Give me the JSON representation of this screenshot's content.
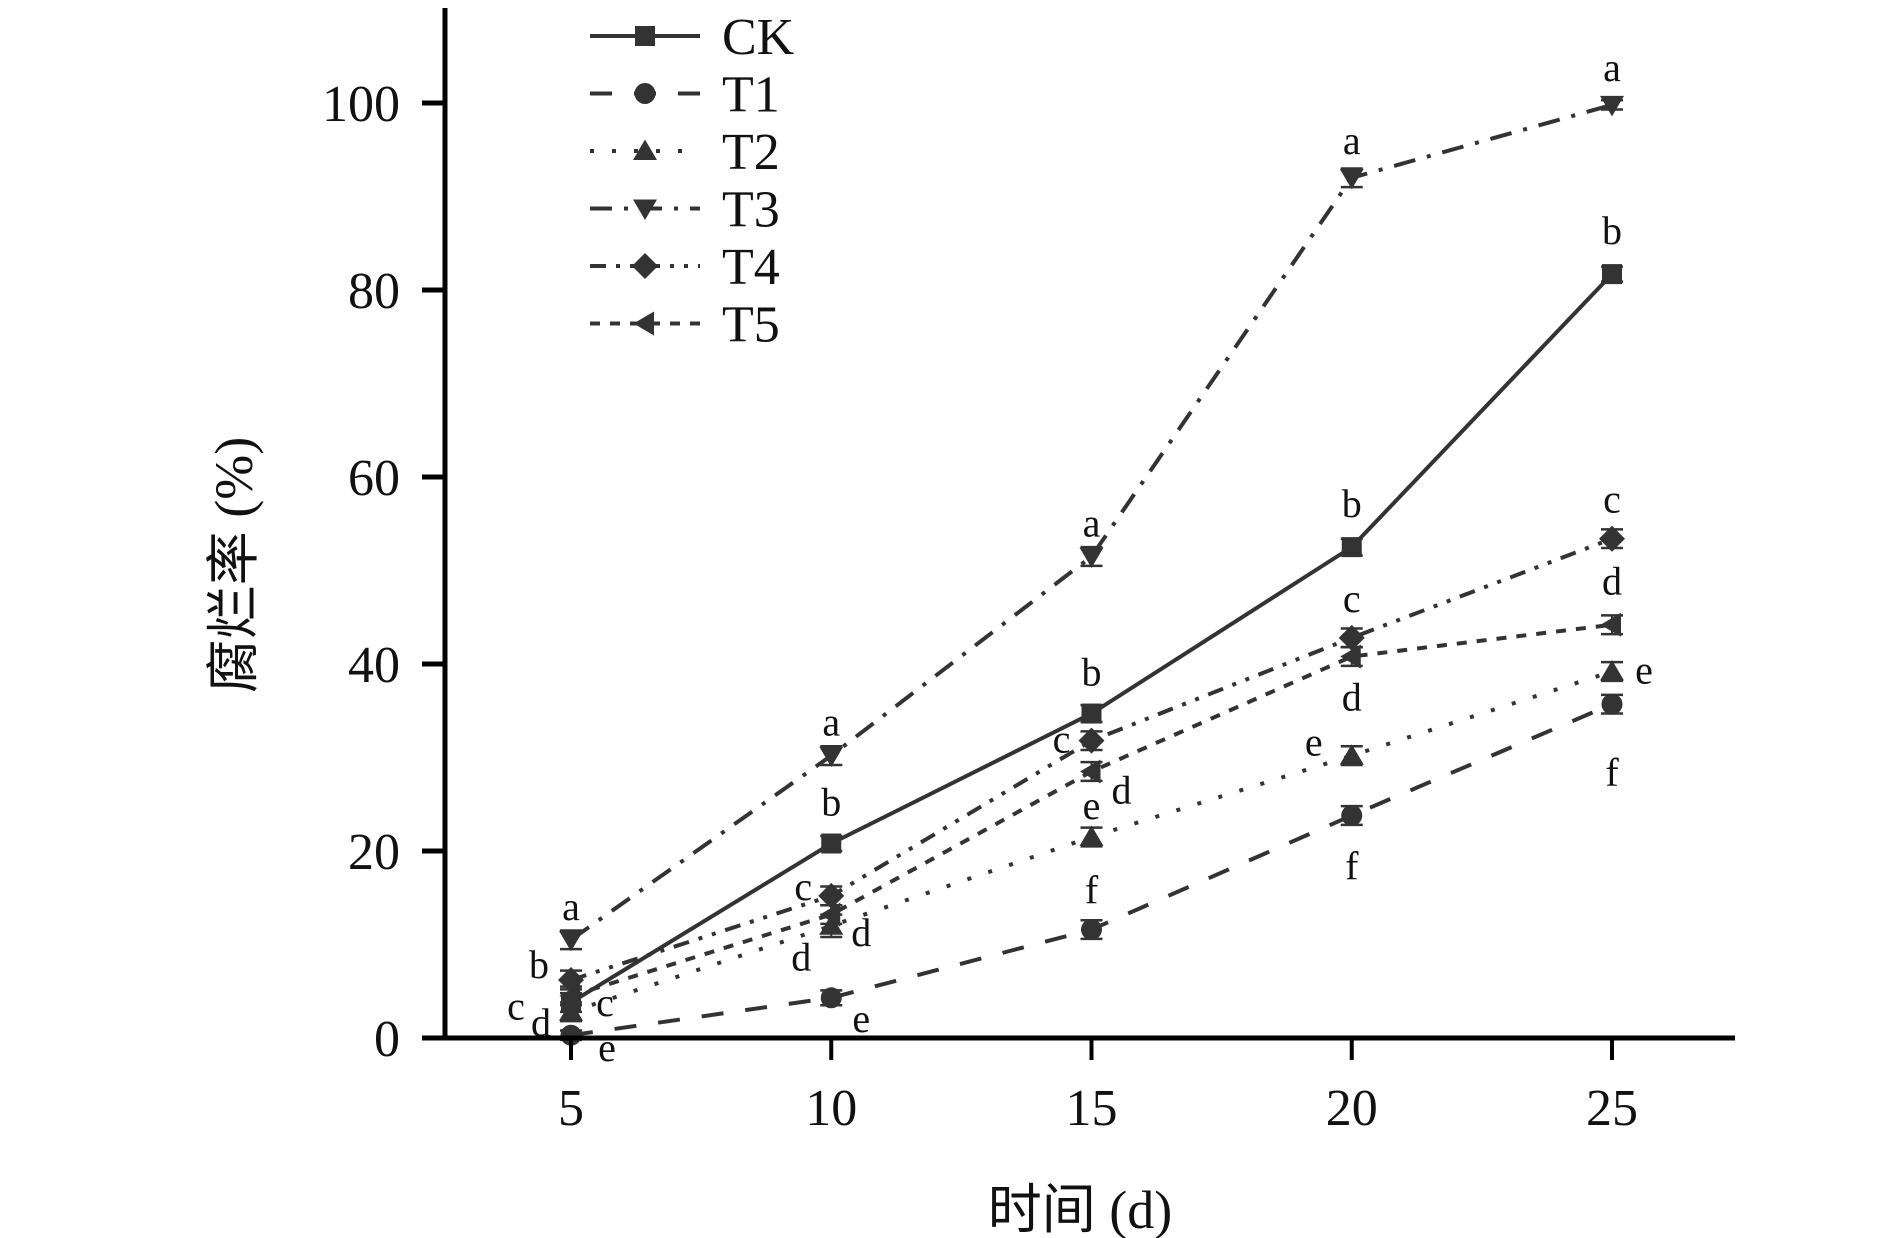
{
  "chart_data": {
    "type": "line",
    "title": "",
    "xlabel": "时间 (d)",
    "ylabel": "腐烂率 (%)",
    "x": [
      5,
      10,
      15,
      20,
      25
    ],
    "xticks": [
      "5",
      "10",
      "15",
      "20",
      "25"
    ],
    "yticks": [
      "0",
      "20",
      "40",
      "60",
      "80",
      "100"
    ],
    "xlim": [
      2.5,
      27.5
    ],
    "ylim": [
      0,
      110
    ],
    "grid": false,
    "legend_position": "top-left",
    "error_bars": true,
    "series": [
      {
        "name": "CK",
        "marker": "square",
        "line_style": "solid",
        "values": [
          3.8,
          20.8,
          34.7,
          52.5,
          81.7
        ],
        "errors": [
          1.0,
          0.8,
          0.9,
          0.9,
          0.8
        ],
        "labels": [
          "c",
          "b",
          "b",
          "b",
          "b"
        ]
      },
      {
        "name": "T1",
        "marker": "circle",
        "line_style": "dashed",
        "values": [
          0.3,
          4.3,
          11.6,
          23.8,
          35.7
        ],
        "errors": [
          0.5,
          0.8,
          1.0,
          1.0,
          1.0
        ],
        "labels": [
          "e",
          "e",
          "f",
          "f",
          "f"
        ]
      },
      {
        "name": "T2",
        "marker": "triangle-up",
        "line_style": "dotted",
        "values": [
          2.8,
          12.0,
          21.5,
          30.2,
          39.2
        ],
        "errors": [
          1.0,
          1.2,
          1.0,
          1.0,
          1.0
        ],
        "labels": [
          "d",
          "d",
          "e",
          "e",
          "e"
        ]
      },
      {
        "name": "T3",
        "marker": "triangle-down",
        "line_style": "dash-dot",
        "values": [
          10.5,
          30.2,
          51.5,
          92.0,
          99.8
        ],
        "errors": [
          1.0,
          1.0,
          1.0,
          1.0,
          0.5
        ],
        "labels": [
          "a",
          "a",
          "a",
          "a",
          "a"
        ]
      },
      {
        "name": "T4",
        "marker": "diamond",
        "line_style": "dash-dot-dot",
        "values": [
          6.2,
          15.2,
          31.8,
          42.8,
          53.4
        ],
        "errors": [
          1.0,
          1.0,
          1.0,
          1.0,
          1.0
        ],
        "labels": [
          "b",
          "c",
          "c",
          "c",
          "c"
        ]
      },
      {
        "name": "T5",
        "marker": "triangle-left",
        "line_style": "short-dash",
        "values": [
          4.5,
          13.2,
          28.5,
          40.8,
          44.2
        ],
        "errors": [
          1.0,
          1.0,
          1.0,
          1.0,
          1.0
        ],
        "labels": [
          "c",
          "d",
          "d",
          "d",
          "d"
        ]
      }
    ]
  },
  "colors": {
    "series": "#333333",
    "axis": "#000000"
  }
}
